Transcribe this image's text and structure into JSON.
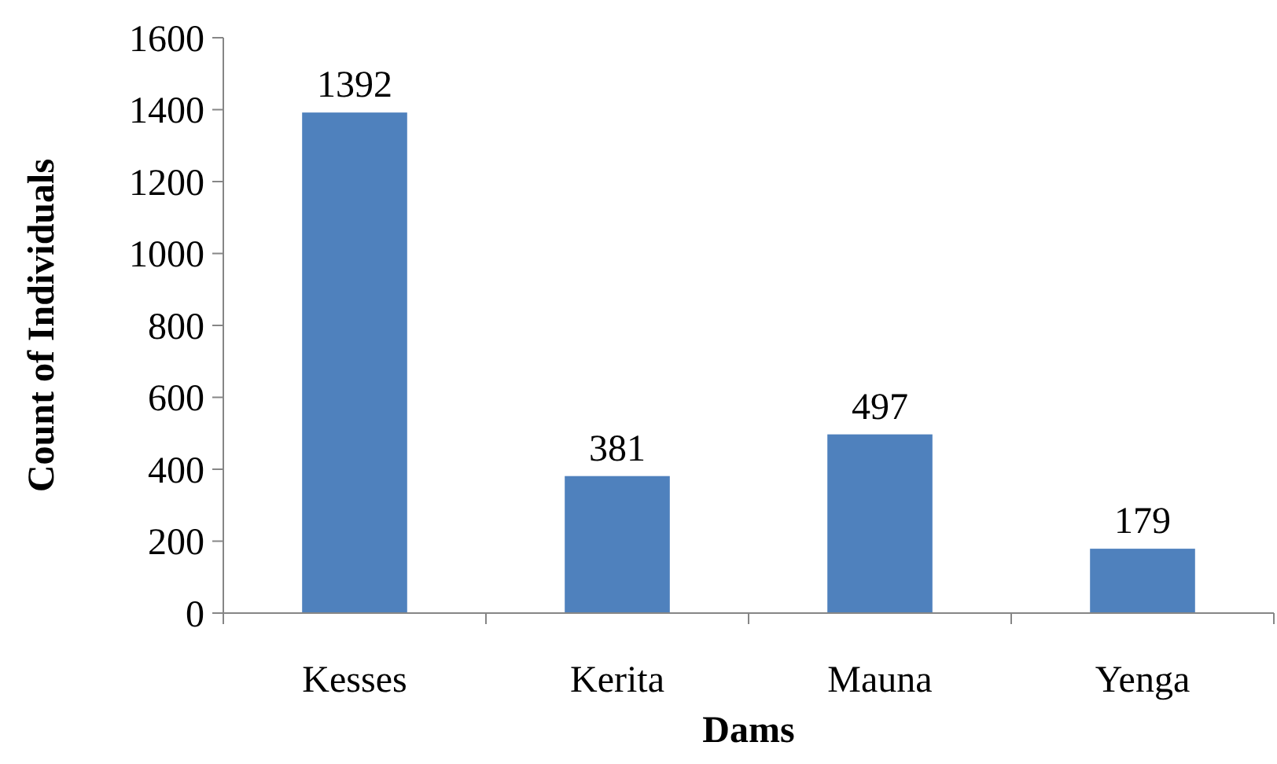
{
  "chart_data": {
    "type": "bar",
    "xlabel": "Dams",
    "ylabel": "Count of Individuals",
    "categories": [
      "Kesses",
      "Kerita",
      "Mauna",
      "Yenga"
    ],
    "values": [
      1392,
      381,
      497,
      179
    ],
    "color": "#4f81bd",
    "ylim": [
      0,
      1600
    ],
    "yticks": [
      0,
      200,
      400,
      600,
      800,
      1000,
      1200,
      1400,
      1600
    ],
    "grid": false,
    "data_labels": true
  }
}
